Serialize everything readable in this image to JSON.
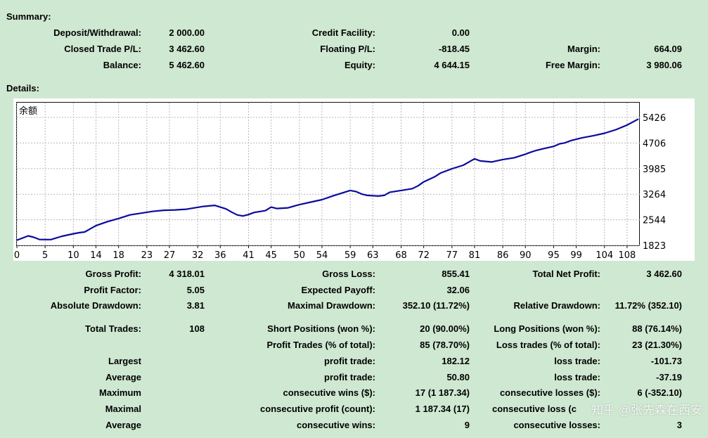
{
  "summary": {
    "title": "Summary:",
    "deposit_label": "Deposit/Withdrawal:",
    "deposit_value": "2 000.00",
    "credit_label": "Credit Facility:",
    "credit_value": "0.00",
    "closed_label": "Closed Trade P/L:",
    "closed_value": "3 462.60",
    "floating_label": "Floating P/L:",
    "floating_value": "-818.45",
    "margin_label": "Margin:",
    "margin_value": "664.09",
    "balance_label": "Balance:",
    "balance_value": "5 462.60",
    "equity_label": "Equity:",
    "equity_value": "4 644.15",
    "free_margin_label": "Free Margin:",
    "free_margin_value": "3 980.06"
  },
  "details": {
    "title": "Details:",
    "gross_profit_label": "Gross Profit:",
    "gross_profit_value": "4 318.01",
    "gross_loss_label": "Gross Loss:",
    "gross_loss_value": "855.41",
    "total_net_label": "Total Net Profit:",
    "total_net_value": "3 462.60",
    "profit_factor_label": "Profit Factor:",
    "profit_factor_value": "5.05",
    "expected_payoff_label": "Expected Payoff:",
    "expected_payoff_value": "32.06",
    "abs_dd_label": "Absolute Drawdown:",
    "abs_dd_value": "3.81",
    "max_dd_label": "Maximal Drawdown:",
    "max_dd_value": "352.10 (11.72%)",
    "rel_dd_label": "Relative Drawdown:",
    "rel_dd_value": "11.72% (352.10)",
    "total_trades_label": "Total Trades:",
    "total_trades_value": "108",
    "short_label": "Short Positions (won %):",
    "short_value": "20 (90.00%)",
    "long_label": "Long Positions (won %):",
    "long_value": "88 (76.14%)",
    "profit_trades_label": "Profit Trades (% of total):",
    "profit_trades_value": "85 (78.70%)",
    "loss_trades_label": "Loss trades (% of total):",
    "loss_trades_value": "23 (21.30%)",
    "largest_label": "Largest",
    "largest_profit_label": "profit trade:",
    "largest_profit_value": "182.12",
    "largest_loss_label": "loss trade:",
    "largest_loss_value": "-101.73",
    "average_label": "Average",
    "average_profit_label": "profit trade:",
    "average_profit_value": "50.80",
    "average_loss_label": "loss trade:",
    "average_loss_value": "-37.19",
    "maximum_label": "Maximum",
    "max_cons_wins_label": "consecutive wins ($):",
    "max_cons_wins_value": "17 (1 187.34)",
    "max_cons_losses_label": "consecutive losses ($):",
    "max_cons_losses_value": "6 (-352.10)",
    "maximal_label": "Maximal",
    "maximal_profit_label": "consecutive profit (count):",
    "maximal_profit_value": "1 187.34 (17)",
    "maximal_loss_label": "consecutive loss (c",
    "average2_label": "Average",
    "avg_cons_wins_label": "consecutive wins:",
    "avg_cons_wins_value": "9",
    "avg_cons_losses_label": "consecutive losses:",
    "avg_cons_losses_value": "3"
  },
  "watermark": "知乎 @张先森在西安",
  "chart_data": {
    "type": "line",
    "title": "余额",
    "color": "#0b0b9e",
    "x_ticks": [
      0,
      5,
      10,
      14,
      18,
      23,
      27,
      32,
      36,
      41,
      45,
      50,
      54,
      59,
      63,
      68,
      72,
      77,
      81,
      86,
      90,
      95,
      99,
      104,
      108
    ],
    "y_ticks": [
      1823,
      2544,
      3264,
      3985,
      4706,
      5426
    ],
    "xlim": [
      0,
      110
    ],
    "ylim": [
      1823,
      5426
    ],
    "series": [
      {
        "x": [
          0,
          2,
          3,
          4,
          6,
          8,
          10,
          11,
          12,
          14,
          16,
          18,
          20,
          22,
          24,
          26,
          28,
          30,
          33,
          35,
          37,
          38,
          39,
          40,
          41,
          42,
          44,
          45,
          46,
          48,
          50,
          52,
          54,
          56,
          58,
          59,
          60,
          61,
          62,
          64,
          65,
          66,
          68,
          70,
          71,
          72,
          74,
          75,
          77,
          79,
          80,
          81,
          82,
          84,
          86,
          88,
          90,
          91,
          92,
          93,
          95,
          96,
          97,
          98,
          100,
          102,
          104,
          106,
          108,
          110
        ],
        "y": [
          1970,
          2090,
          2050,
          1990,
          1985,
          2080,
          2150,
          2180,
          2200,
          2380,
          2490,
          2580,
          2680,
          2730,
          2780,
          2810,
          2820,
          2840,
          2920,
          2950,
          2850,
          2760,
          2680,
          2650,
          2690,
          2750,
          2800,
          2900,
          2860,
          2880,
          2970,
          3040,
          3110,
          3220,
          3320,
          3370,
          3340,
          3270,
          3230,
          3210,
          3230,
          3320,
          3370,
          3420,
          3500,
          3610,
          3760,
          3860,
          3980,
          4080,
          4170,
          4260,
          4200,
          4170,
          4240,
          4290,
          4390,
          4450,
          4500,
          4540,
          4610,
          4680,
          4710,
          4770,
          4850,
          4910,
          4980,
          5080,
          5210,
          5380
        ]
      }
    ]
  }
}
